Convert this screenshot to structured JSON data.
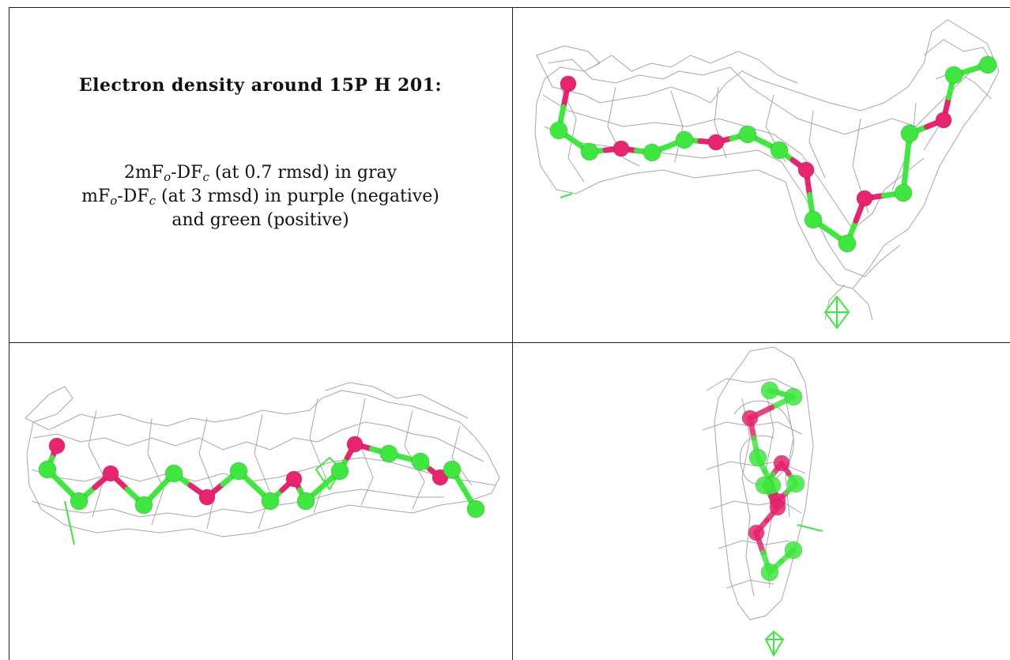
{
  "title": "Electron density around 15P H 201:",
  "line1": {
    "a": "2mF",
    "s1": "o",
    "b": "-DF",
    "s2": "c",
    "c": " (at 0.7 rmsd) in gray"
  },
  "line2": {
    "a": "mF",
    "s1": "o",
    "b": "-DF",
    "s2": "c",
    "c": " (at 3 rmsd) in purple (negative)"
  },
  "line3": "and green (positive)",
  "colors": {
    "carbon": "#3ee83e",
    "oxygen": "#e8246e",
    "mesh": "#9e9e9e",
    "positive_density": "#2ee82e"
  },
  "panels": [
    "top-right view",
    "bottom-left view",
    "bottom-right view"
  ]
}
